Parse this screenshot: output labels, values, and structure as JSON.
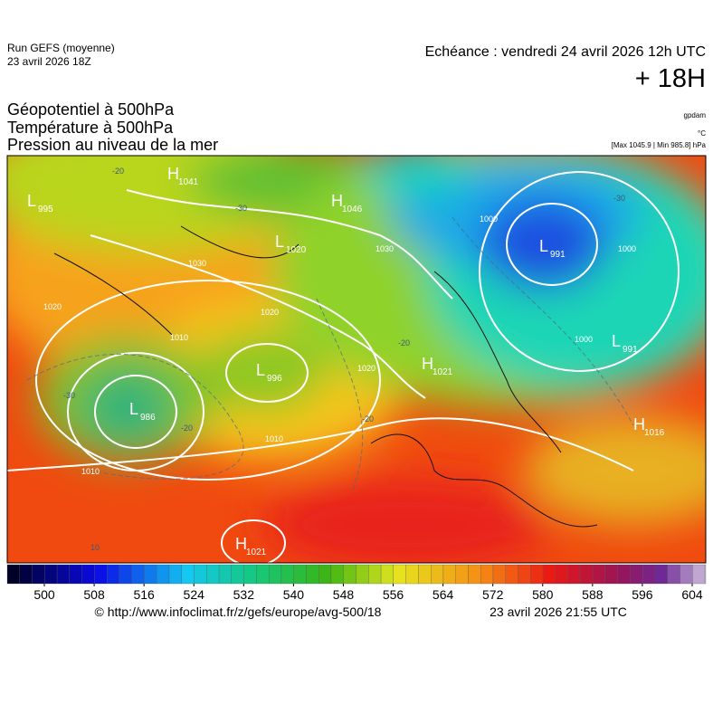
{
  "header": {
    "run": "Run GEFS (moyenne)",
    "run_date": "23 avril 2026 18Z",
    "echeance": "Echéance : vendredi 24 avril 2026 12h UTC",
    "lead": "+ 18H"
  },
  "titles": [
    "Géopotentiel à 500hPa",
    "Température à 500hPa",
    "Pression au niveau de la mer"
  ],
  "units": [
    "gpdam",
    "°C",
    "[Max 1045.9 | Min 985.8] hPa"
  ],
  "map": {
    "centers": [
      {
        "kind": "L",
        "value": "995"
      },
      {
        "kind": "H",
        "value": "1041"
      },
      {
        "kind": "H",
        "value": "1046"
      },
      {
        "kind": "L",
        "value": "1020"
      },
      {
        "kind": "L",
        "value": "991"
      },
      {
        "kind": "L",
        "value": "996"
      },
      {
        "kind": "L",
        "value": "986"
      },
      {
        "kind": "H",
        "value": "1021"
      },
      {
        "kind": "L",
        "value": "991"
      },
      {
        "kind": "H",
        "value": "1016"
      },
      {
        "kind": "H",
        "value": "1021"
      }
    ],
    "isobar_labels": [
      "1030",
      "1020",
      "1010",
      "1020",
      "1010",
      "1000",
      "1000",
      "1000",
      "1030",
      "1010",
      "1020"
    ],
    "isotherm_labels": [
      "-30",
      "-30",
      "-20",
      "-20",
      "-30",
      "-20",
      "-20",
      "10"
    ]
  },
  "colorbar": {
    "ticks": [
      500,
      508,
      516,
      524,
      532,
      540,
      548,
      556,
      564,
      572,
      580,
      588,
      596,
      604
    ],
    "step": 2
  },
  "footer": {
    "source": "© http://www.infoclimat.fr/z/gefs/europe/avg-500/18",
    "generated": "23 avril 2026 21:55 UTC"
  }
}
